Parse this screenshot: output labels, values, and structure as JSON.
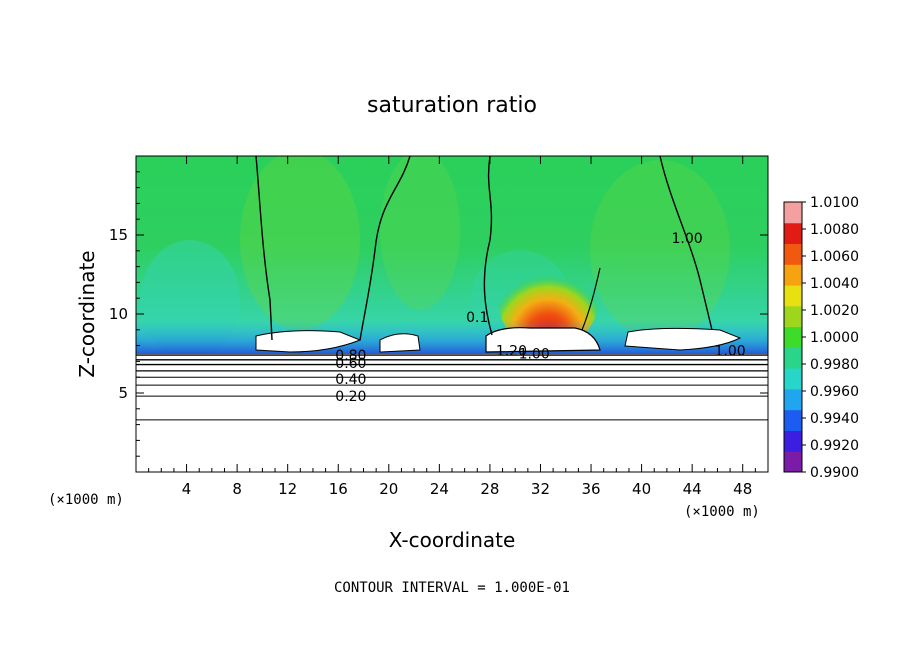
{
  "chart_data": {
    "type": "heatmap",
    "title": "saturation ratio",
    "xlabel": "X-coordinate",
    "ylabel": "Z-coordinate",
    "x_unit": "(×1000 m)",
    "x_ticks": [
      4,
      8,
      12,
      16,
      20,
      24,
      28,
      32,
      36,
      40,
      44,
      48
    ],
    "y_ticks": [
      5,
      10,
      15
    ],
    "xlim": [
      0,
      50
    ],
    "ylim": [
      0,
      20
    ],
    "footer": "CONTOUR INTERVAL = 1.000E-01",
    "colorbar": {
      "labels": [
        "1.0100",
        "1.0080",
        "1.0060",
        "1.0040",
        "1.0020",
        "1.0000",
        "0.9980",
        "0.9960",
        "0.9940",
        "0.9920",
        "0.9900"
      ],
      "min": 0.99,
      "max": 1.01,
      "colors": [
        "#7a1ca8",
        "#3b1ee0",
        "#1c5cf0",
        "#1fa6ee",
        "#27d6c8",
        "#2ad48a",
        "#3ddc2a",
        "#9ed61e",
        "#e8e011",
        "#f6a311",
        "#f05a10",
        "#e01c14",
        "#f4a0a0"
      ]
    },
    "contour_labels": [
      {
        "text": "1.00",
        "x": 43.6,
        "z": 14.8
      },
      {
        "text": "1.00",
        "x": 47.0,
        "z": 7.7
      },
      {
        "text": "1.20",
        "x": 29.7,
        "z": 7.7
      },
      {
        "text": "1.00",
        "x": 31.5,
        "z": 7.5
      },
      {
        "text": "0.1",
        "x": 27.0,
        "z": 9.8
      },
      {
        "text": "0.80",
        "x": 17.0,
        "z": 7.4
      },
      {
        "text": "0.60",
        "x": 17.0,
        "z": 6.9
      },
      {
        "text": "0.40",
        "x": 17.0,
        "z": 5.9
      },
      {
        "text": "0.20",
        "x": 17.0,
        "z": 4.8
      }
    ]
  }
}
